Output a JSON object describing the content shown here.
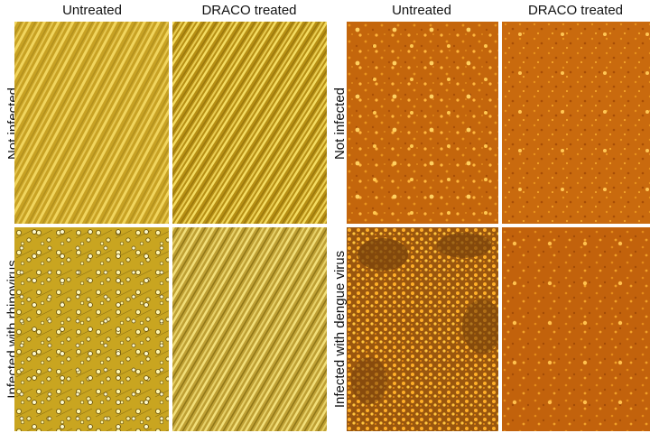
{
  "left_figure": {
    "columns": [
      "Untreated",
      "DRACO treated"
    ],
    "rows": [
      "Not infected",
      "Infected with rhinovirus"
    ]
  },
  "right_figure": {
    "columns": [
      "Untreated",
      "DRACO treated"
    ],
    "rows": [
      "Not infected",
      "Infected with dengue virus"
    ]
  },
  "colors": {
    "background": "#ffffff",
    "rhinovirus_base": "#c9a11c",
    "rhinovirus_streak": "#f3d95a",
    "dengue_base": "#c76a0e",
    "dengue_speck": "#ffb347"
  }
}
